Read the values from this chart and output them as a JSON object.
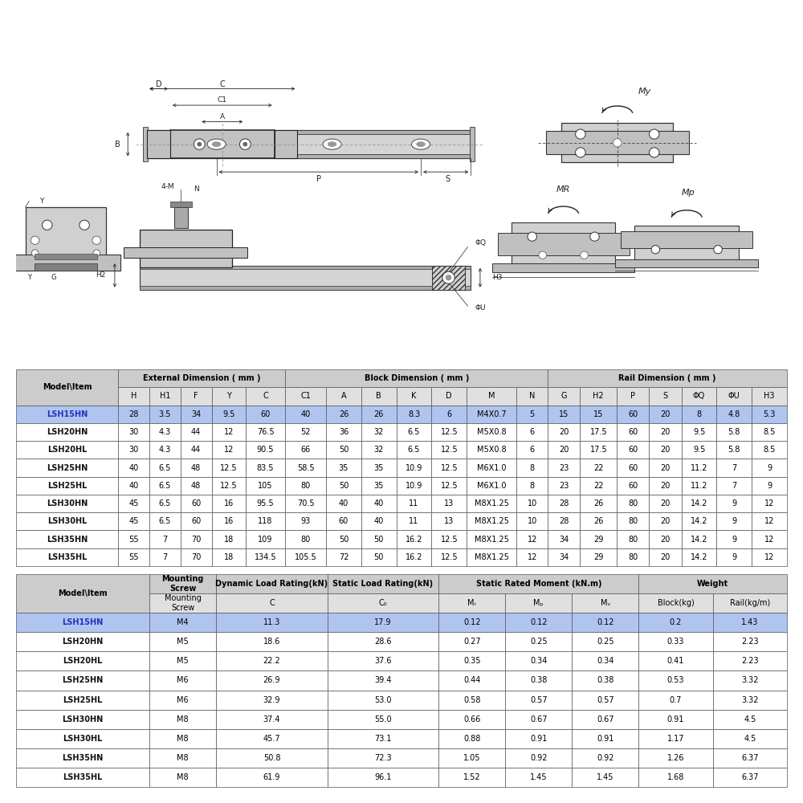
{
  "header_bg": "#cccccc",
  "subheader_bg": "#e0e0e0",
  "highlight_bg": "#b0c4f0",
  "highlight_fg": "#2233bb",
  "cell_bg": "#ffffff",
  "border_color": "#555555",
  "text_color": "#111111",
  "drawing_bg": "#ffffff",
  "table1_groups": [
    {
      "label": "External Dimension ( mm )",
      "start": 1,
      "end": 5
    },
    {
      "label": "Block Dimension ( mm )",
      "start": 6,
      "end": 12
    },
    {
      "label": "Rail Dimension ( mm )",
      "start": 13,
      "end": 19
    }
  ],
  "table1_headers": [
    "Model\\Item",
    "H",
    "H1",
    "F",
    "Y",
    "C",
    "C1",
    "A",
    "B",
    "K",
    "D",
    "M",
    "N",
    "G",
    "H2",
    "P",
    "S",
    "ΦQ",
    "ΦU",
    "H3"
  ],
  "table1_col_widths": [
    1.8,
    0.55,
    0.55,
    0.55,
    0.6,
    0.7,
    0.72,
    0.62,
    0.62,
    0.62,
    0.62,
    0.88,
    0.55,
    0.57,
    0.65,
    0.57,
    0.57,
    0.62,
    0.62,
    0.62
  ],
  "table1_rows": [
    [
      "LSH15HN",
      "28",
      "3.5",
      "34",
      "9.5",
      "60",
      "40",
      "26",
      "26",
      "8.3",
      "6",
      "M4X0.7",
      "5",
      "15",
      "15",
      "60",
      "20",
      "8",
      "4.8",
      "5.3"
    ],
    [
      "LSH20HN",
      "30",
      "4.3",
      "44",
      "12",
      "76.5",
      "52",
      "36",
      "32",
      "6.5",
      "12.5",
      "M5X0.8",
      "6",
      "20",
      "17.5",
      "60",
      "20",
      "9.5",
      "5.8",
      "8.5"
    ],
    [
      "LSH20HL",
      "30",
      "4.3",
      "44",
      "12",
      "90.5",
      "66",
      "50",
      "32",
      "6.5",
      "12.5",
      "M5X0.8",
      "6",
      "20",
      "17.5",
      "60",
      "20",
      "9.5",
      "5.8",
      "8.5"
    ],
    [
      "LSH25HN",
      "40",
      "6.5",
      "48",
      "12.5",
      "83.5",
      "58.5",
      "35",
      "35",
      "10.9",
      "12.5",
      "M6X1.0",
      "8",
      "23",
      "22",
      "60",
      "20",
      "11.2",
      "7",
      "9"
    ],
    [
      "LSH25HL",
      "40",
      "6.5",
      "48",
      "12.5",
      "105",
      "80",
      "50",
      "35",
      "10.9",
      "12.5",
      "M6X1.0",
      "8",
      "23",
      "22",
      "60",
      "20",
      "11.2",
      "7",
      "9"
    ],
    [
      "LSH30HN",
      "45",
      "6.5",
      "60",
      "16",
      "95.5",
      "70.5",
      "40",
      "40",
      "11",
      "13",
      "M8X1.25",
      "10",
      "28",
      "26",
      "80",
      "20",
      "14.2",
      "9",
      "12"
    ],
    [
      "LSH30HL",
      "45",
      "6.5",
      "60",
      "16",
      "118",
      "93",
      "60",
      "40",
      "11",
      "13",
      "M8X1.25",
      "10",
      "28",
      "26",
      "80",
      "20",
      "14.2",
      "9",
      "12"
    ],
    [
      "LSH35HN",
      "55",
      "7",
      "70",
      "18",
      "109",
      "80",
      "50",
      "50",
      "16.2",
      "12.5",
      "M8X1.25",
      "12",
      "34",
      "29",
      "80",
      "20",
      "14.2",
      "9",
      "12"
    ],
    [
      "LSH35HL",
      "55",
      "7",
      "70",
      "18",
      "134.5",
      "105.5",
      "72",
      "50",
      "16.2",
      "12.5",
      "M8X1.25",
      "12",
      "34",
      "29",
      "80",
      "20",
      "14.2",
      "9",
      "12"
    ]
  ],
  "table2_groups": [
    {
      "label": "Mounting\nScrew",
      "start": 1,
      "end": 1
    },
    {
      "label": "Dynamic Load Rating(kN)",
      "start": 2,
      "end": 2
    },
    {
      "label": "Static Load Rating(kN)",
      "start": 3,
      "end": 3
    },
    {
      "label": "Static Rated Moment (kN.m)",
      "start": 4,
      "end": 6
    },
    {
      "label": "Weight",
      "start": 7,
      "end": 8
    }
  ],
  "table2_subheaders": [
    "",
    "Mounting\nScrew",
    "C",
    "C₀",
    "Mᵣ",
    "Mₚ",
    "Mᵥ",
    "Block(kg)",
    "Rail(kg/m)"
  ],
  "table2_col_widths": [
    1.8,
    0.9,
    1.5,
    1.5,
    0.9,
    0.9,
    0.9,
    1.0,
    1.0
  ],
  "table2_rows": [
    [
      "LSH15HN",
      "M4",
      "11.3",
      "17.9",
      "0.12",
      "0.12",
      "0.12",
      "0.2",
      "1.43"
    ],
    [
      "LSH20HN",
      "M5",
      "18.6",
      "28.6",
      "0.27",
      "0.25",
      "0.25",
      "0.33",
      "2.23"
    ],
    [
      "LSH20HL",
      "M5",
      "22.2",
      "37.6",
      "0.35",
      "0.34",
      "0.34",
      "0.41",
      "2.23"
    ],
    [
      "LSH25HN",
      "M6",
      "26.9",
      "39.4",
      "0.44",
      "0.38",
      "0.38",
      "0.53",
      "3.32"
    ],
    [
      "LSH25HL",
      "M6",
      "32.9",
      "53.0",
      "0.58",
      "0.57",
      "0.57",
      "0.7",
      "3.32"
    ],
    [
      "LSH30HN",
      "M8",
      "37.4",
      "55.0",
      "0.66",
      "0.67",
      "0.67",
      "0.91",
      "4.5"
    ],
    [
      "LSH30HL",
      "M8",
      "45.7",
      "73.1",
      "0.88",
      "0.91",
      "0.91",
      "1.17",
      "4.5"
    ],
    [
      "LSH35HN",
      "M8",
      "50.8",
      "72.3",
      "1.05",
      "0.92",
      "0.92",
      "1.26",
      "6.37"
    ],
    [
      "LSH35HL",
      "M8",
      "61.9",
      "96.1",
      "1.52",
      "1.45",
      "1.45",
      "1.68",
      "6.37"
    ]
  ]
}
